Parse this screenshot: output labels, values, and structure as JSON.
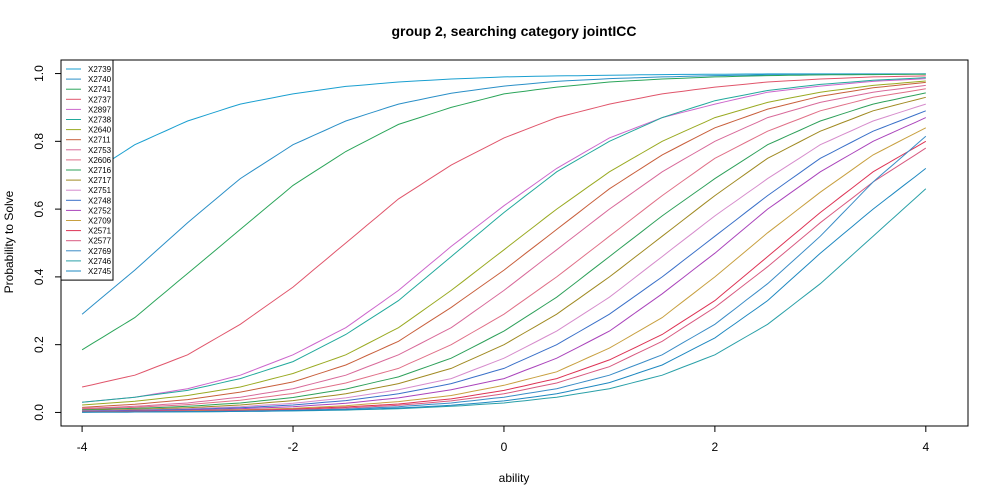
{
  "chart_data": {
    "type": "line",
    "title": "group 2, searching category jointICC",
    "xlabel": "ability",
    "ylabel": "Probability to Solve",
    "xlim": [
      -4.2,
      4.4
    ],
    "ylim": [
      -0.04,
      1.04
    ],
    "x_ticks": [
      -4,
      -2,
      0,
      2,
      4
    ],
    "y_ticks": [
      0.0,
      0.2,
      0.4,
      0.6,
      0.8,
      1.0
    ],
    "x_tick_labels": [
      "-4",
      "-2",
      "0",
      "2",
      "4"
    ],
    "y_tick_labels": [
      "0.0",
      "0.2",
      "0.4",
      "0.6",
      "0.8",
      "1.0"
    ],
    "legend_position": "top-left",
    "x": [
      -4,
      -3.5,
      -3,
      -2.5,
      -2,
      -1.5,
      -1,
      -0.5,
      0,
      0.5,
      1,
      1.5,
      2,
      2.5,
      3,
      3.5,
      4
    ],
    "series": [
      {
        "name": "X2739",
        "color": "#1a9fd0",
        "values": [
          0.69,
          0.79,
          0.86,
          0.91,
          0.94,
          0.962,
          0.975,
          0.984,
          0.99,
          0.993,
          0.995,
          0.997,
          0.998,
          0.999,
          0.999,
          0.999,
          0.999
        ]
      },
      {
        "name": "X2740",
        "color": "#2a8fc7",
        "values": [
          0.29,
          0.42,
          0.56,
          0.69,
          0.79,
          0.86,
          0.91,
          0.942,
          0.963,
          0.977,
          0.985,
          0.99,
          0.994,
          0.996,
          0.997,
          0.998,
          0.999
        ]
      },
      {
        "name": "X2741",
        "color": "#2ba55a",
        "values": [
          0.185,
          0.28,
          0.41,
          0.54,
          0.67,
          0.77,
          0.85,
          0.9,
          0.94,
          0.96,
          0.975,
          0.984,
          0.99,
          0.994,
          0.996,
          0.997,
          0.998
        ]
      },
      {
        "name": "X2737",
        "color": "#e0556b",
        "values": [
          0.075,
          0.11,
          0.17,
          0.26,
          0.37,
          0.5,
          0.63,
          0.73,
          0.81,
          0.87,
          0.91,
          0.94,
          0.96,
          0.975,
          0.984,
          0.99,
          0.993
        ]
      },
      {
        "name": "X2897",
        "color": "#cc66cc",
        "values": [
          0.03,
          0.045,
          0.07,
          0.11,
          0.17,
          0.25,
          0.36,
          0.49,
          0.61,
          0.72,
          0.81,
          0.87,
          0.91,
          0.945,
          0.963,
          0.977,
          0.985
        ]
      },
      {
        "name": "X2738",
        "color": "#22a99c",
        "values": [
          0.03,
          0.045,
          0.065,
          0.1,
          0.15,
          0.23,
          0.33,
          0.46,
          0.59,
          0.71,
          0.8,
          0.87,
          0.92,
          0.95,
          0.968,
          0.98,
          0.988
        ]
      },
      {
        "name": "X2640",
        "color": "#9aaa22",
        "values": [
          0.022,
          0.033,
          0.05,
          0.075,
          0.115,
          0.17,
          0.25,
          0.36,
          0.48,
          0.6,
          0.71,
          0.8,
          0.87,
          0.915,
          0.945,
          0.965,
          0.978
        ]
      },
      {
        "name": "X2711",
        "color": "#c85f3c",
        "values": [
          0.015,
          0.024,
          0.038,
          0.06,
          0.09,
          0.14,
          0.21,
          0.31,
          0.42,
          0.54,
          0.66,
          0.76,
          0.84,
          0.895,
          0.933,
          0.958,
          0.974
        ]
      },
      {
        "name": "X2753",
        "color": "#d86a9a",
        "values": [
          0.012,
          0.018,
          0.028,
          0.045,
          0.07,
          0.11,
          0.17,
          0.25,
          0.36,
          0.48,
          0.6,
          0.71,
          0.8,
          0.87,
          0.915,
          0.945,
          0.965
        ]
      },
      {
        "name": "X2606",
        "color": "#e07088",
        "values": [
          0.01,
          0.015,
          0.023,
          0.036,
          0.056,
          0.087,
          0.13,
          0.2,
          0.29,
          0.4,
          0.52,
          0.64,
          0.75,
          0.83,
          0.89,
          0.93,
          0.955
        ]
      },
      {
        "name": "X2716",
        "color": "#2ea05a",
        "values": [
          0.008,
          0.012,
          0.018,
          0.028,
          0.044,
          0.069,
          0.105,
          0.16,
          0.24,
          0.34,
          0.46,
          0.58,
          0.69,
          0.79,
          0.86,
          0.91,
          0.943
        ]
      },
      {
        "name": "X2717",
        "color": "#a08a22",
        "values": [
          0.006,
          0.009,
          0.014,
          0.022,
          0.035,
          0.055,
          0.085,
          0.13,
          0.2,
          0.29,
          0.4,
          0.52,
          0.64,
          0.75,
          0.83,
          0.89,
          0.93
        ]
      },
      {
        "name": "X2751",
        "color": "#d68ccc",
        "values": [
          0.005,
          0.007,
          0.011,
          0.017,
          0.027,
          0.043,
          0.067,
          0.1,
          0.16,
          0.24,
          0.34,
          0.46,
          0.58,
          0.69,
          0.79,
          0.86,
          0.91
        ]
      },
      {
        "name": "X2748",
        "color": "#3a70c8",
        "values": [
          0.004,
          0.006,
          0.009,
          0.014,
          0.022,
          0.035,
          0.055,
          0.085,
          0.13,
          0.2,
          0.29,
          0.4,
          0.52,
          0.64,
          0.75,
          0.83,
          0.89
        ]
      },
      {
        "name": "X2752",
        "color": "#aa44bb",
        "values": [
          0.003,
          0.0045,
          0.007,
          0.011,
          0.017,
          0.027,
          0.043,
          0.067,
          0.1,
          0.16,
          0.24,
          0.35,
          0.47,
          0.6,
          0.71,
          0.8,
          0.87
        ]
      },
      {
        "name": "X2709",
        "color": "#c8a040",
        "values": [
          0.002,
          0.003,
          0.005,
          0.008,
          0.012,
          0.02,
          0.032,
          0.05,
          0.08,
          0.12,
          0.19,
          0.28,
          0.4,
          0.53,
          0.65,
          0.76,
          0.84
        ]
      },
      {
        "name": "X2571",
        "color": "#dd3355",
        "values": [
          0.002,
          0.003,
          0.004,
          0.006,
          0.01,
          0.016,
          0.025,
          0.04,
          0.065,
          0.1,
          0.155,
          0.23,
          0.33,
          0.46,
          0.59,
          0.71,
          0.8
        ]
      },
      {
        "name": "X2577",
        "color": "#d85a80",
        "values": [
          0.0015,
          0.002,
          0.0035,
          0.005,
          0.008,
          0.013,
          0.021,
          0.034,
          0.055,
          0.087,
          0.135,
          0.21,
          0.31,
          0.43,
          0.56,
          0.68,
          0.78
        ]
      },
      {
        "name": "X2769",
        "color": "#3a8cc6",
        "values": [
          0.001,
          0.0015,
          0.0025,
          0.004,
          0.006,
          0.01,
          0.017,
          0.028,
          0.045,
          0.07,
          0.11,
          0.17,
          0.26,
          0.38,
          0.52,
          0.68,
          0.815
        ]
      },
      {
        "name": "X2746",
        "color": "#2aa0a8",
        "values": [
          0.0008,
          0.0012,
          0.0018,
          0.003,
          0.0045,
          0.007,
          0.011,
          0.018,
          0.028,
          0.045,
          0.07,
          0.11,
          0.17,
          0.26,
          0.38,
          0.52,
          0.66
        ]
      },
      {
        "name": "X2745",
        "color": "#1e88c0",
        "values": [
          0.0008,
          0.0012,
          0.002,
          0.003,
          0.005,
          0.008,
          0.013,
          0.021,
          0.034,
          0.055,
          0.088,
          0.14,
          0.22,
          0.33,
          0.47,
          0.6,
          0.72
        ]
      }
    ]
  }
}
